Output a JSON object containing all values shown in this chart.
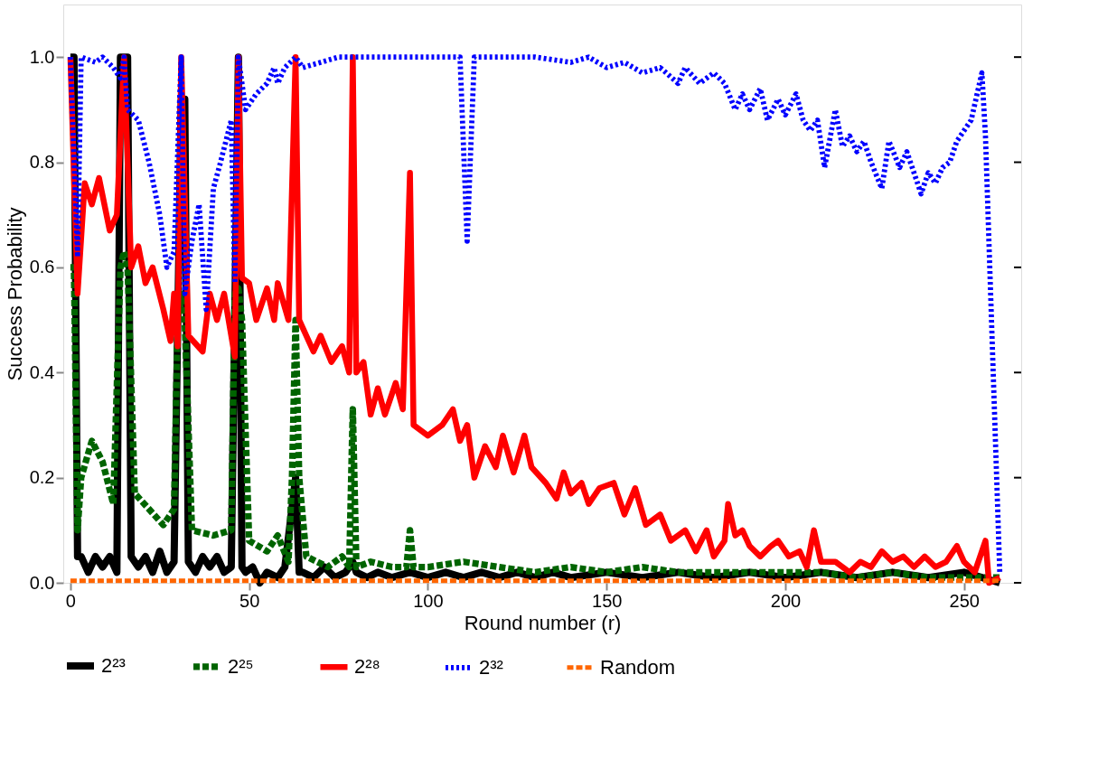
{
  "chart_data": {
    "type": "line",
    "xlabel": "Round number (r)",
    "ylabel": "Success Probability",
    "xlim": [
      -2,
      266
    ],
    "ylim": [
      0,
      1.1
    ],
    "xticks": [
      0,
      50,
      100,
      150,
      200,
      250
    ],
    "yticks": [
      {
        "value": 0,
        "label": "0.0"
      },
      {
        "value": 0.2,
        "label": "0.2"
      },
      {
        "value": 0.4,
        "label": "0.4"
      },
      {
        "value": 0.6,
        "label": "0.6"
      },
      {
        "value": 0.8,
        "label": "0.8"
      },
      {
        "value": 1.0,
        "label": "1.0"
      }
    ],
    "grid": false,
    "legend": "bottom",
    "marker": "none",
    "series": [
      {
        "name": "2²³",
        "color": "#000000",
        "line_style": "solid",
        "x": [
          0,
          1,
          2,
          3,
          5,
          7,
          9,
          11,
          13,
          14,
          16,
          17,
          19,
          21,
          23,
          25,
          27,
          29,
          31,
          32,
          33,
          35,
          37,
          39,
          41,
          43,
          45,
          47,
          48,
          49,
          51,
          53,
          55,
          58,
          60,
          63,
          64,
          65,
          68,
          71,
          74,
          77,
          79,
          80,
          83,
          86,
          90,
          95,
          100,
          105,
          110,
          115,
          120,
          125,
          130,
          135,
          140,
          150,
          160,
          170,
          180,
          190,
          200,
          210,
          220,
          230,
          240,
          250,
          255,
          260
        ],
        "values": [
          1.0,
          1.0,
          0.05,
          0.05,
          0.02,
          0.05,
          0.03,
          0.05,
          0.02,
          1.0,
          1.0,
          0.05,
          0.03,
          0.05,
          0.02,
          0.06,
          0.02,
          0.04,
          0.92,
          0.92,
          0.04,
          0.02,
          0.05,
          0.03,
          0.05,
          0.02,
          0.03,
          1.0,
          0.03,
          0.02,
          0.03,
          0.0,
          0.02,
          0.01,
          0.03,
          0.2,
          0.02,
          0.02,
          0.01,
          0.03,
          0.01,
          0.02,
          0.04,
          0.02,
          0.01,
          0.02,
          0.01,
          0.02,
          0.01,
          0.02,
          0.01,
          0.02,
          0.01,
          0.02,
          0.01,
          0.02,
          0.01,
          0.02,
          0.01,
          0.02,
          0.01,
          0.02,
          0.01,
          0.02,
          0.01,
          0.02,
          0.01,
          0.02,
          0.01,
          0.0
        ]
      },
      {
        "name": "2²⁵",
        "color": "#006400",
        "line_style": "dashed",
        "x": [
          0,
          1,
          2,
          3,
          6,
          9,
          12,
          14,
          15,
          16,
          18,
          22,
          26,
          29,
          30,
          31,
          32,
          34,
          40,
          45,
          46,
          47,
          48,
          50,
          55,
          58,
          61,
          62,
          63,
          64,
          66,
          72,
          76,
          78,
          79,
          80,
          84,
          90,
          94,
          95,
          96,
          100,
          110,
          120,
          130,
          140,
          150,
          160,
          170,
          180,
          190,
          200,
          210,
          220,
          230,
          240,
          250,
          260
        ],
        "values": [
          0.6,
          0.6,
          0.1,
          0.2,
          0.27,
          0.23,
          0.15,
          0.6,
          0.63,
          0.6,
          0.17,
          0.14,
          0.11,
          0.14,
          0.5,
          0.55,
          0.5,
          0.1,
          0.09,
          0.1,
          0.55,
          0.56,
          0.5,
          0.08,
          0.06,
          0.09,
          0.04,
          0.2,
          0.5,
          0.2,
          0.05,
          0.03,
          0.05,
          0.03,
          0.33,
          0.03,
          0.04,
          0.03,
          0.03,
          0.1,
          0.03,
          0.03,
          0.04,
          0.03,
          0.02,
          0.03,
          0.02,
          0.03,
          0.02,
          0.02,
          0.02,
          0.02,
          0.02,
          0.01,
          0.02,
          0.01,
          0.01,
          0.01
        ]
      },
      {
        "name": "2²⁸",
        "color": "#ff0000",
        "line_style": "solid",
        "x": [
          0,
          2,
          4,
          6,
          8,
          11,
          13,
          15,
          17,
          19,
          21,
          23,
          26,
          28,
          29,
          30,
          31,
          33,
          37,
          39,
          41,
          43,
          46,
          47,
          48,
          50,
          52,
          55,
          57,
          58,
          61,
          63,
          64,
          68,
          70,
          73,
          76,
          78,
          79,
          80,
          82,
          84,
          86,
          88,
          91,
          93,
          95,
          96,
          100,
          104,
          107,
          109,
          111,
          113,
          116,
          119,
          121,
          124,
          127,
          129,
          133,
          136,
          138,
          140,
          143,
          145,
          148,
          152,
          155,
          158,
          161,
          165,
          168,
          172,
          175,
          178,
          180,
          183,
          184,
          186,
          188,
          190,
          193,
          196,
          198,
          201,
          204,
          206,
          208,
          210,
          214,
          218,
          221,
          224,
          227,
          230,
          233,
          236,
          239,
          242,
          245,
          248,
          250,
          253,
          256,
          257,
          260
        ],
        "values": [
          1.0,
          0.55,
          0.76,
          0.72,
          0.77,
          0.67,
          0.7,
          1.0,
          0.6,
          0.64,
          0.57,
          0.6,
          0.52,
          0.46,
          0.55,
          0.45,
          1.0,
          0.47,
          0.44,
          0.55,
          0.5,
          0.55,
          0.43,
          1.0,
          0.58,
          0.57,
          0.5,
          0.56,
          0.5,
          0.57,
          0.5,
          1.0,
          0.5,
          0.44,
          0.47,
          0.42,
          0.45,
          0.4,
          1.0,
          0.4,
          0.42,
          0.32,
          0.37,
          0.32,
          0.38,
          0.33,
          0.78,
          0.3,
          0.28,
          0.3,
          0.33,
          0.27,
          0.3,
          0.2,
          0.26,
          0.22,
          0.28,
          0.21,
          0.28,
          0.22,
          0.19,
          0.16,
          0.21,
          0.17,
          0.19,
          0.15,
          0.18,
          0.19,
          0.13,
          0.18,
          0.11,
          0.13,
          0.08,
          0.1,
          0.06,
          0.1,
          0.05,
          0.08,
          0.15,
          0.09,
          0.1,
          0.07,
          0.05,
          0.07,
          0.08,
          0.05,
          0.06,
          0.03,
          0.1,
          0.04,
          0.04,
          0.02,
          0.04,
          0.03,
          0.06,
          0.04,
          0.05,
          0.03,
          0.05,
          0.03,
          0.04,
          0.07,
          0.04,
          0.02,
          0.08,
          0.0,
          0.01
        ]
      },
      {
        "name": "2³²",
        "color": "#0000ff",
        "line_style": "dotted",
        "x": [
          0,
          2,
          3,
          7,
          9,
          12,
          14,
          15,
          16,
          19,
          22,
          25,
          27,
          29,
          31,
          32,
          34,
          36,
          38,
          40,
          42,
          45,
          46,
          47,
          49,
          52,
          55,
          57,
          58,
          60,
          63,
          65,
          70,
          75,
          80,
          90,
          100,
          109,
          111,
          113,
          120,
          130,
          140,
          145,
          150,
          155,
          160,
          165,
          170,
          172,
          176,
          180,
          183,
          186,
          188,
          190,
          193,
          195,
          198,
          200,
          203,
          205,
          207,
          209,
          211,
          214,
          216,
          218,
          220,
          222,
          224,
          227,
          229,
          232,
          234,
          236,
          238,
          240,
          242,
          244,
          246,
          248,
          250,
          252,
          255,
          256,
          260
        ],
        "values": [
          1.0,
          0.62,
          1.0,
          0.99,
          1.0,
          0.98,
          0.96,
          1.0,
          0.9,
          0.88,
          0.8,
          0.7,
          0.6,
          0.63,
          1.0,
          0.55,
          0.65,
          0.72,
          0.52,
          0.75,
          0.8,
          0.88,
          0.57,
          1.0,
          0.9,
          0.93,
          0.95,
          0.98,
          0.95,
          0.98,
          1.0,
          0.98,
          0.99,
          1.0,
          1.0,
          1.0,
          1.0,
          1.0,
          0.65,
          1.0,
          1.0,
          1.0,
          0.99,
          1.0,
          0.98,
          0.99,
          0.97,
          0.98,
          0.95,
          0.98,
          0.95,
          0.97,
          0.95,
          0.9,
          0.93,
          0.9,
          0.94,
          0.88,
          0.92,
          0.89,
          0.93,
          0.88,
          0.86,
          0.88,
          0.79,
          0.9,
          0.83,
          0.85,
          0.82,
          0.84,
          0.8,
          0.75,
          0.84,
          0.79,
          0.82,
          0.78,
          0.74,
          0.78,
          0.76,
          0.79,
          0.8,
          0.84,
          0.86,
          0.88,
          0.97,
          0.85,
          0.02
        ]
      },
      {
        "name": "Random",
        "color": "#ff6600",
        "line_style": "dashed",
        "x": [
          0,
          50,
          100,
          150,
          200,
          250,
          260
        ],
        "values": [
          0.004,
          0.004,
          0.004,
          0.004,
          0.004,
          0.004,
          0.004
        ]
      }
    ]
  }
}
